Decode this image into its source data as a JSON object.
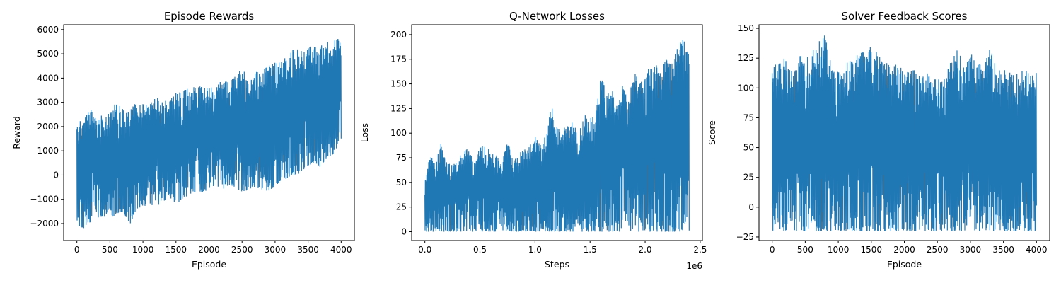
{
  "chart_data": [
    {
      "type": "line",
      "title": "Episode Rewards",
      "xlabel": "Episode",
      "ylabel": "Reward",
      "xlim": [
        -200,
        4200
      ],
      "ylim": [
        -2700,
        6200
      ],
      "xticks": [
        0,
        500,
        1000,
        1500,
        2000,
        2500,
        3000,
        3500,
        4000
      ],
      "xtick_labels": [
        "0",
        "500",
        "1000",
        "1500",
        "2000",
        "2500",
        "3000",
        "3500",
        "4000"
      ],
      "yticks": [
        -2000,
        -1000,
        0,
        1000,
        2000,
        3000,
        4000,
        5000,
        6000
      ],
      "ytick_labels": [
        "−2000",
        "−1000",
        "0",
        "1000",
        "2000",
        "3000",
        "4000",
        "5000",
        "6000"
      ],
      "x_offset_label": "",
      "series": [
        {
          "color": "#1f77b4",
          "x": [
            0,
            100,
            200,
            300,
            400,
            500,
            600,
            700,
            800,
            900,
            1000,
            1100,
            1200,
            1300,
            1400,
            1500,
            1600,
            1700,
            1800,
            1900,
            2000,
            2100,
            2200,
            2300,
            2400,
            2500,
            2600,
            2700,
            2800,
            2900,
            3000,
            3100,
            3200,
            3300,
            3400,
            3500,
            3600,
            3700,
            3800,
            3900,
            4000
          ],
          "y_upper": [
            2300,
            2200,
            2850,
            2400,
            2500,
            2550,
            3100,
            2700,
            2800,
            3000,
            2950,
            3000,
            3250,
            3000,
            3300,
            3400,
            3500,
            3600,
            3700,
            3700,
            3600,
            3700,
            3900,
            3850,
            4100,
            4400,
            4100,
            4200,
            4500,
            4500,
            4700,
            4700,
            5100,
            5200,
            5200,
            5300,
            5300,
            5400,
            5500,
            5600,
            5700
          ],
          "y_lower": [
            -2100,
            -2200,
            -2000,
            -1800,
            -1700,
            -1800,
            -1600,
            -1500,
            -2050,
            -1400,
            -1300,
            -1200,
            -1300,
            -1100,
            -900,
            -1200,
            -1000,
            -800,
            -700,
            -700,
            -600,
            -400,
            -600,
            -400,
            -500,
            -700,
            -600,
            -500,
            -600,
            -700,
            -450,
            -300,
            -100,
            0,
            100,
            400,
            500,
            300,
            700,
            900,
            1500
          ]
        }
      ]
    },
    {
      "type": "line",
      "title": "Q-Network Losses",
      "xlabel": "Steps",
      "ylabel": "Loss",
      "xlim": [
        -0.12,
        2.52
      ],
      "ylim": [
        -9,
        210
      ],
      "xticks": [
        0.0,
        0.5,
        1.0,
        1.5,
        2.0,
        2.5
      ],
      "xtick_labels": [
        "0.0",
        "0.5",
        "1.0",
        "1.5",
        "2.0",
        "2.5"
      ],
      "yticks": [
        0,
        25,
        50,
        75,
        100,
        125,
        150,
        175,
        200
      ],
      "ytick_labels": [
        "0",
        "25",
        "50",
        "75",
        "100",
        "125",
        "150",
        "175",
        "200"
      ],
      "x_offset_label": "1e6",
      "series": [
        {
          "color": "#1f77b4",
          "x": [
            0.0,
            0.05,
            0.1,
            0.15,
            0.2,
            0.25,
            0.3,
            0.35,
            0.4,
            0.45,
            0.5,
            0.55,
            0.6,
            0.65,
            0.7,
            0.75,
            0.8,
            0.85,
            0.9,
            0.95,
            1.0,
            1.05,
            1.1,
            1.15,
            1.2,
            1.25,
            1.3,
            1.35,
            1.4,
            1.45,
            1.5,
            1.55,
            1.6,
            1.65,
            1.7,
            1.75,
            1.8,
            1.85,
            1.9,
            1.95,
            2.0,
            2.05,
            2.1,
            2.15,
            2.2,
            2.25,
            2.3,
            2.35,
            2.4
          ],
          "y_upper": [
            50,
            82,
            68,
            95,
            70,
            68,
            75,
            88,
            82,
            72,
            85,
            90,
            80,
            78,
            72,
            95,
            75,
            80,
            85,
            90,
            98,
            88,
            100,
            132,
            110,
            105,
            108,
            112,
            100,
            122,
            115,
            120,
            165,
            140,
            145,
            130,
            155,
            135,
            172,
            150,
            160,
            170,
            175,
            160,
            185,
            170,
            193,
            195,
            180
          ],
          "y_lower": [
            0,
            0,
            0,
            0,
            0,
            0,
            0,
            0,
            0,
            0,
            0,
            0,
            0,
            0,
            0,
            0,
            0,
            0,
            0,
            0,
            0,
            0,
            0,
            0,
            0,
            0,
            0,
            0,
            0,
            0,
            0,
            0,
            0,
            0,
            0,
            0,
            0,
            0,
            0,
            0,
            0,
            0,
            0,
            0,
            0,
            0,
            0,
            0,
            0
          ]
        }
      ]
    },
    {
      "type": "line",
      "title": "Solver Feedback Scores",
      "xlabel": "Episode",
      "ylabel": "Score",
      "xlim": [
        -200,
        4200
      ],
      "ylim": [
        -28,
        153
      ],
      "xticks": [
        0,
        500,
        1000,
        1500,
        2000,
        2500,
        3000,
        3500,
        4000
      ],
      "xtick_labels": [
        "0",
        "500",
        "1000",
        "1500",
        "2000",
        "2500",
        "3000",
        "3500",
        "4000"
      ],
      "yticks": [
        -25,
        0,
        25,
        50,
        75,
        100,
        125,
        150
      ],
      "ytick_labels": [
        "−25",
        "0",
        "25",
        "50",
        "75",
        "100",
        "125",
        "150"
      ],
      "x_offset_label": "",
      "series": [
        {
          "color": "#1f77b4",
          "x": [
            0,
            100,
            200,
            300,
            400,
            500,
            600,
            700,
            800,
            900,
            1000,
            1100,
            1200,
            1300,
            1400,
            1500,
            1600,
            1700,
            1800,
            1900,
            2000,
            2100,
            2200,
            2300,
            2400,
            2500,
            2600,
            2700,
            2800,
            2900,
            3000,
            3100,
            3200,
            3300,
            3400,
            3500,
            3600,
            3700,
            3800,
            3900,
            4000
          ],
          "y_upper": [
            120,
            120,
            130,
            115,
            125,
            135,
            130,
            140,
            145,
            120,
            115,
            120,
            125,
            130,
            130,
            135,
            130,
            125,
            120,
            120,
            115,
            120,
            110,
            115,
            110,
            110,
            115,
            125,
            135,
            120,
            130,
            125,
            120,
            135,
            115,
            115,
            115,
            115,
            115,
            115,
            115
          ],
          "y_lower": [
            -20,
            -20,
            -20,
            -20,
            -20,
            -20,
            -20,
            -20,
            -20,
            -20,
            -20,
            -20,
            -20,
            -20,
            -20,
            -20,
            -20,
            -20,
            -20,
            -20,
            -20,
            -20,
            -20,
            -20,
            -20,
            -20,
            -20,
            -20,
            -20,
            -20,
            -20,
            -20,
            -20,
            -20,
            -20,
            -20,
            -20,
            -20,
            -20,
            -20,
            -20
          ]
        }
      ]
    }
  ]
}
